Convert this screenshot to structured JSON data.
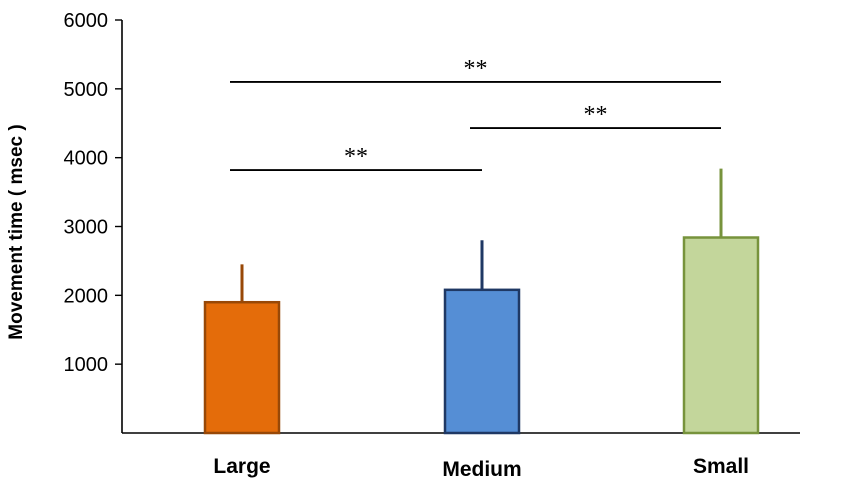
{
  "chart_data": {
    "type": "bar",
    "title": "",
    "xlabel": "",
    "ylabel": "Movement time ( msec )",
    "ylim": [
      0,
      6000
    ],
    "yticks": [
      1000,
      2000,
      3000,
      4000,
      5000,
      6000
    ],
    "grid": false,
    "categories": [
      "Large",
      "Medium",
      "Small"
    ],
    "values": [
      1900,
      2080,
      2840
    ],
    "errors": [
      550,
      720,
      1000
    ],
    "colors": {
      "fills": [
        "#E46C0A",
        "#558ED5",
        "#C3D69B"
      ],
      "strokes": [
        "#984807",
        "#1F3864",
        "#77933C"
      ]
    },
    "significance": [
      {
        "from": "Large",
        "to": "Small",
        "y": 5100,
        "label": "**"
      },
      {
        "from": "Medium",
        "to": "Small",
        "y": 4430,
        "label": "**"
      },
      {
        "from": "Large",
        "to": "Medium",
        "y": 3820,
        "label": "**"
      }
    ]
  }
}
